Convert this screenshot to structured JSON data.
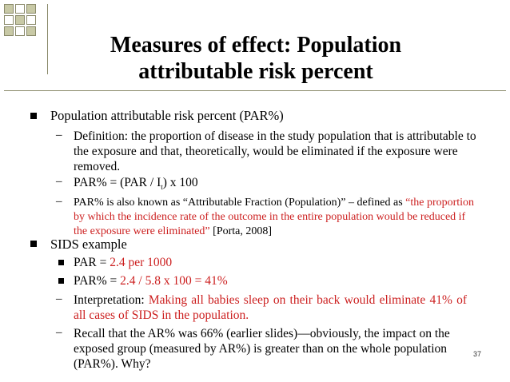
{
  "slide": {
    "title_line1": "Measures of effect: Population",
    "title_line2": "attributable risk percent",
    "page_number": "37"
  },
  "bullets": {
    "par_heading": "Population attributable risk percent (PAR%)",
    "definition": "Definition: the proportion of disease in the study population that is attributable to the exposure and that, theoretically, would be eliminated if the exposure were removed.",
    "formula_prefix": "PAR% = (PAR / I",
    "formula_sub": "t",
    "formula_suffix": ") x 100",
    "aka_text": "PAR% is also known as “Attributable Fraction (Population)” – defined as ",
    "aka_quote": "“the proportion by which the incidence rate of the outcome in the entire population would be reduced if the exposure were eliminated”",
    "aka_citation": " [Porta, 2008]",
    "sids_heading": "SIDS example",
    "par_label": "PAR = ",
    "par_value": "2.4 per 1000",
    "parpct_label": "PAR% = ",
    "parpct_value": "2.4 / 5.8 x 100 = 41%",
    "interp_label": "Interpretation: ",
    "interp_value": "Making all babies sleep on their back would eliminate 41% of all cases of SIDS in the population.",
    "recall": "Recall that the AR% was 66% (earlier slides)—obviously, the impact on the exposed group (measured by AR%) is greater than on the whole population (PAR%). Why?"
  },
  "colors": {
    "accent_red": "#cc1f1f",
    "deco_square": "#c8c9a6"
  }
}
